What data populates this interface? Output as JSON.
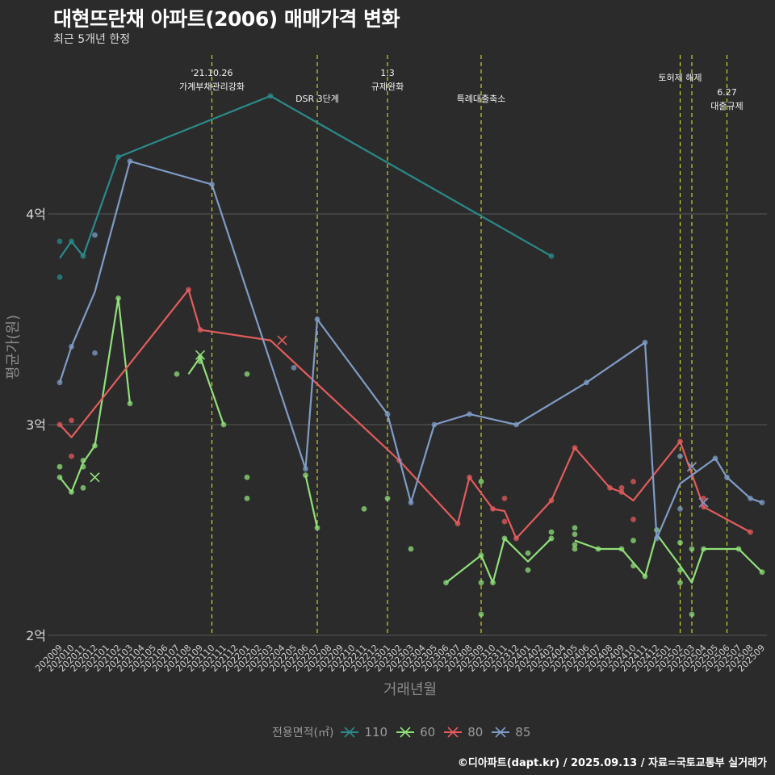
{
  "header": {
    "title": "대현뜨란채 아파트(2006) 매매가격 변화",
    "subtitle": "최근 5개년 한정"
  },
  "footer": "©디아파트(dapt.kr) / 2025.09.13 / 자료=국토교통부 실거래가",
  "legend": {
    "title": "전용면적(㎡)",
    "items": [
      {
        "label": "110",
        "color": "#2b8a8a"
      },
      {
        "label": "60",
        "color": "#8fe07a"
      },
      {
        "label": "80",
        "color": "#e45c5c"
      },
      {
        "label": "85",
        "color": "#7f9cc7"
      }
    ]
  },
  "chart_data": {
    "type": "line",
    "xlabel": "거래년월",
    "ylabel": "평균가(원)",
    "ylim": [
      2.0,
      4.85
    ],
    "yticks": [
      {
        "value": 2,
        "label": "2억"
      },
      {
        "value": 3,
        "label": "3억"
      },
      {
        "value": 4,
        "label": "4억"
      }
    ],
    "x_categories": [
      "202009",
      "202010",
      "202011",
      "202012",
      "202101",
      "202102",
      "202103",
      "202104",
      "202105",
      "202106",
      "202107",
      "202108",
      "202109",
      "202110",
      "202111",
      "202112",
      "202201",
      "202202",
      "202203",
      "202204",
      "202205",
      "202206",
      "202207",
      "202208",
      "202209",
      "202210",
      "202211",
      "202212",
      "202301",
      "202302",
      "202303",
      "202304",
      "202305",
      "202306",
      "202307",
      "202308",
      "202309",
      "202310",
      "202311",
      "202312",
      "202401",
      "202402",
      "202403",
      "202404",
      "202405",
      "202406",
      "202407",
      "202408",
      "202409",
      "202410",
      "202411",
      "202412",
      "202501",
      "202502",
      "202503",
      "202504",
      "202505",
      "202506",
      "202507",
      "202508",
      "202509"
    ],
    "events": [
      {
        "x": "202110",
        "label": "'21.10.26\n가계부채관리강화",
        "row": 0
      },
      {
        "x": "202207",
        "label": "DSR 3단계",
        "row": 2
      },
      {
        "x": "202301",
        "label": "1.3\n규제완화",
        "row": 0
      },
      {
        "x": "202309",
        "label": "특례대출축소",
        "row": 2
      },
      {
        "x": "202502",
        "label": "토허제 해제",
        "row": 1
      },
      {
        "x": "202503",
        "label": "",
        "row": 1
      },
      {
        "x": "202506",
        "label": "6.27\n대출규제",
        "row": 3
      }
    ],
    "series": [
      {
        "name": "110",
        "color": "#2b8a8a",
        "line": [
          [
            "202009",
            3.79
          ],
          [
            "202010",
            3.87
          ],
          [
            "202011",
            3.8
          ],
          [
            "202102",
            4.27
          ],
          [
            "202203",
            4.56
          ],
          [
            "202403",
            3.8
          ]
        ],
        "points": [
          [
            "202009",
            3.87
          ],
          [
            "202009",
            3.7
          ],
          [
            "202010",
            3.87
          ],
          [
            "202011",
            3.8
          ],
          [
            "202102",
            4.27
          ],
          [
            "202203",
            4.56
          ],
          [
            "202403",
            3.8
          ]
        ],
        "crosses": []
      },
      {
        "name": "60",
        "color": "#8fe07a",
        "line_segments": [
          [
            [
              "202009",
              2.75
            ],
            [
              "202010",
              2.68
            ],
            [
              "202011",
              2.82
            ],
            [
              "202012",
              2.9
            ],
            [
              "202102",
              3.6
            ],
            [
              "202103",
              3.1
            ]
          ],
          [
            [
              "202108",
              3.24
            ],
            [
              "202109",
              3.32
            ],
            [
              "202111",
              3.0
            ]
          ],
          [
            [
              "202206",
              2.76
            ],
            [
              "202207",
              2.51
            ]
          ],
          [
            [
              "202306",
              2.25
            ],
            [
              "202309",
              2.38
            ],
            [
              "202310",
              2.25
            ],
            [
              "202311",
              2.46
            ],
            [
              "202401",
              2.35
            ],
            [
              "202403",
              2.46
            ]
          ],
          [
            [
              "202405",
              2.45
            ],
            [
              "202407",
              2.41
            ],
            [
              "202409",
              2.41
            ],
            [
              "202411",
              2.28
            ],
            [
              "202412",
              2.48
            ],
            [
              "202502",
              2.33
            ],
            [
              "202503",
              2.25
            ],
            [
              "202504",
              2.41
            ],
            [
              "202507",
              2.41
            ],
            [
              "202509",
              2.3
            ]
          ]
        ],
        "points": [
          [
            "202009",
            2.8
          ],
          [
            "202009",
            2.75
          ],
          [
            "202010",
            2.68
          ],
          [
            "202011",
            2.7
          ],
          [
            "202011",
            2.8
          ],
          [
            "202011",
            2.83
          ],
          [
            "202012",
            2.9
          ],
          [
            "202102",
            3.6
          ],
          [
            "202103",
            3.1
          ],
          [
            "202107",
            3.24
          ],
          [
            "202109",
            3.3
          ],
          [
            "202109",
            3.32
          ],
          [
            "202111",
            3.0
          ],
          [
            "202201",
            3.24
          ],
          [
            "202201",
            2.75
          ],
          [
            "202201",
            2.65
          ],
          [
            "202206",
            2.76
          ],
          [
            "202207",
            2.51
          ],
          [
            "202211",
            2.6
          ],
          [
            "202301",
            2.65
          ],
          [
            "202303",
            2.41
          ],
          [
            "202306",
            2.25
          ],
          [
            "202309",
            2.73
          ],
          [
            "202309",
            2.38
          ],
          [
            "202309",
            2.25
          ],
          [
            "202309",
            2.1
          ],
          [
            "202310",
            2.25
          ],
          [
            "202311",
            2.46
          ],
          [
            "202401",
            2.39
          ],
          [
            "202401",
            2.31
          ],
          [
            "202403",
            2.46
          ],
          [
            "202403",
            2.49
          ],
          [
            "202405",
            2.51
          ],
          [
            "202405",
            2.48
          ],
          [
            "202405",
            2.43
          ],
          [
            "202405",
            2.41
          ],
          [
            "202407",
            2.41
          ],
          [
            "202409",
            2.41
          ],
          [
            "202410",
            2.45
          ],
          [
            "202410",
            2.33
          ],
          [
            "202411",
            2.28
          ],
          [
            "202412",
            2.5
          ],
          [
            "202502",
            2.44
          ],
          [
            "202502",
            2.31
          ],
          [
            "202502",
            2.25
          ],
          [
            "202503",
            2.41
          ],
          [
            "202503",
            2.1
          ],
          [
            "202504",
            2.41
          ],
          [
            "202507",
            2.41
          ],
          [
            "202509",
            2.3
          ]
        ],
        "crosses": [
          [
            "202012",
            2.75
          ],
          [
            "202109",
            3.33
          ]
        ]
      },
      {
        "name": "80",
        "color": "#e45c5c",
        "line_segments": [
          [
            [
              "202009",
              3.0
            ],
            [
              "202010",
              2.94
            ],
            [
              "202108",
              3.64
            ],
            [
              "202109",
              3.45
            ],
            [
              "202203",
              3.4
            ],
            [
              "202302",
              2.83
            ],
            [
              "202307",
              2.53
            ],
            [
              "202308",
              2.75
            ],
            [
              "202310",
              2.6
            ],
            [
              "202311",
              2.59
            ],
            [
              "202312",
              2.46
            ],
            [
              "202403",
              2.64
            ],
            [
              "202405",
              2.89
            ],
            [
              "202408",
              2.7
            ],
            [
              "202409",
              2.68
            ],
            [
              "202410",
              2.64
            ],
            [
              "202502",
              2.92
            ],
            [
              "202504",
              2.61
            ],
            [
              "202508",
              2.49
            ]
          ]
        ],
        "points": [
          [
            "202009",
            3.0
          ],
          [
            "202010",
            3.02
          ],
          [
            "202010",
            2.85
          ],
          [
            "202108",
            3.64
          ],
          [
            "202109",
            3.45
          ],
          [
            "202302",
            2.83
          ],
          [
            "202307",
            2.53
          ],
          [
            "202308",
            2.75
          ],
          [
            "202310",
            2.6
          ],
          [
            "202311",
            2.65
          ],
          [
            "202311",
            2.54
          ],
          [
            "202312",
            2.46
          ],
          [
            "202403",
            2.64
          ],
          [
            "202405",
            2.89
          ],
          [
            "202408",
            2.7
          ],
          [
            "202409",
            2.7
          ],
          [
            "202409",
            2.68
          ],
          [
            "202410",
            2.73
          ],
          [
            "202410",
            2.55
          ],
          [
            "202502",
            2.92
          ],
          [
            "202504",
            2.65
          ],
          [
            "202504",
            2.61
          ],
          [
            "202508",
            2.49
          ]
        ],
        "crosses": [
          [
            "202204",
            3.4
          ],
          [
            "202503",
            2.8
          ]
        ]
      },
      {
        "name": "85",
        "color": "#7f9cc7",
        "line_segments": [
          [
            [
              "202009",
              3.2
            ],
            [
              "202010",
              3.37
            ],
            [
              "202012",
              3.63
            ],
            [
              "202103",
              4.25
            ],
            [
              "202110",
              4.14
            ],
            [
              "202206",
              2.79
            ],
            [
              "202207",
              3.5
            ],
            [
              "202301",
              3.05
            ],
            [
              "202303",
              2.63
            ],
            [
              "202305",
              3.0
            ],
            [
              "202308",
              3.05
            ],
            [
              "202312",
              3.0
            ],
            [
              "202406",
              3.2
            ],
            [
              "202411",
              3.39
            ],
            [
              "202412",
              2.46
            ],
            [
              "202502",
              2.72
            ],
            [
              "202505",
              2.84
            ],
            [
              "202506",
              2.75
            ],
            [
              "202508",
              2.65
            ],
            [
              "202509",
              2.63
            ]
          ]
        ],
        "points": [
          [
            "202009",
            3.2
          ],
          [
            "202010",
            3.37
          ],
          [
            "202012",
            3.9
          ],
          [
            "202012",
            3.34
          ],
          [
            "202103",
            4.25
          ],
          [
            "202110",
            4.14
          ],
          [
            "202205",
            3.27
          ],
          [
            "202206",
            2.79
          ],
          [
            "202207",
            3.5
          ],
          [
            "202301",
            3.05
          ],
          [
            "202303",
            2.63
          ],
          [
            "202305",
            3.0
          ],
          [
            "202308",
            3.05
          ],
          [
            "202312",
            3.0
          ],
          [
            "202406",
            3.2
          ],
          [
            "202411",
            3.39
          ],
          [
            "202412",
            2.46
          ],
          [
            "202502",
            2.85
          ],
          [
            "202502",
            2.6
          ],
          [
            "202505",
            2.84
          ],
          [
            "202506",
            2.75
          ],
          [
            "202508",
            2.65
          ],
          [
            "202509",
            2.63
          ]
        ],
        "crosses": [
          [
            "202503",
            2.8
          ],
          [
            "202504",
            2.63
          ]
        ]
      }
    ]
  }
}
